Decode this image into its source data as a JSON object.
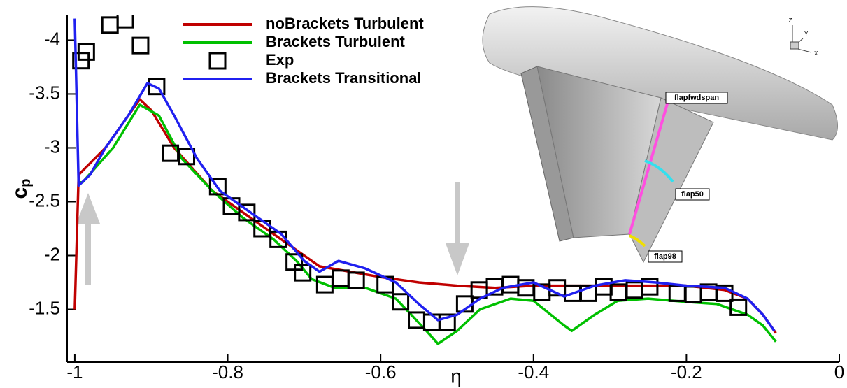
{
  "chart_data": {
    "type": "line",
    "xlabel": "η",
    "ylabel": "c",
    "ylabel_subscript": "p",
    "xlim": [
      -1.01,
      0
    ],
    "ylim": [
      -1.01,
      -4.23
    ],
    "xticks": [
      -1,
      -0.8,
      -0.6,
      -0.4,
      -0.2,
      0
    ],
    "yticks": [
      -4,
      -3.5,
      -3,
      -2.5,
      -2,
      -1.5
    ],
    "series": [
      {
        "name": "noBrackets Turbulent",
        "color": "#c00000",
        "style": "line",
        "x": [
          -1.0,
          -0.995,
          -0.96,
          -0.94,
          -0.915,
          -0.9,
          -0.87,
          -0.82,
          -0.78,
          -0.74,
          -0.71,
          -0.68,
          -0.64,
          -0.6,
          -0.55,
          -0.5,
          -0.45,
          -0.4,
          -0.3,
          -0.2,
          -0.15,
          -0.12,
          -0.1,
          -0.083
        ],
        "values": [
          -1.5,
          -2.75,
          -3.0,
          -3.2,
          -3.45,
          -3.35,
          -3.0,
          -2.6,
          -2.4,
          -2.2,
          -2.05,
          -1.9,
          -1.85,
          -1.8,
          -1.75,
          -1.72,
          -1.7,
          -1.72,
          -1.72,
          -1.72,
          -1.68,
          -1.6,
          -1.45,
          -1.28
        ]
      },
      {
        "name": "Brackets Turbulent",
        "color": "#00c000",
        "style": "line",
        "x": [
          -0.995,
          -0.99,
          -0.95,
          -0.915,
          -0.89,
          -0.86,
          -0.82,
          -0.78,
          -0.74,
          -0.71,
          -0.69,
          -0.66,
          -0.62,
          -0.58,
          -0.54,
          -0.525,
          -0.5,
          -0.47,
          -0.43,
          -0.4,
          -0.36,
          -0.35,
          -0.32,
          -0.29,
          -0.25,
          -0.2,
          -0.16,
          -0.12,
          -0.1,
          -0.083
        ],
        "values": [
          -2.68,
          -2.68,
          -3.0,
          -3.4,
          -3.3,
          -2.9,
          -2.6,
          -2.35,
          -2.15,
          -1.95,
          -1.78,
          -1.7,
          -1.7,
          -1.6,
          -1.3,
          -1.18,
          -1.3,
          -1.5,
          -1.6,
          -1.58,
          -1.35,
          -1.3,
          -1.45,
          -1.58,
          -1.6,
          -1.57,
          -1.55,
          -1.45,
          -1.35,
          -1.2
        ]
      },
      {
        "name": "Exp",
        "color": "#000000",
        "style": "marker",
        "x": [
          -0.992,
          -0.985,
          -0.954,
          -0.934,
          -0.914,
          -0.893,
          -0.875,
          -0.854,
          -0.813,
          -0.795,
          -0.775,
          -0.755,
          -0.734,
          -0.713,
          -0.702,
          -0.673,
          -0.652,
          -0.632,
          -0.594,
          -0.574,
          -0.553,
          -0.533,
          -0.513,
          -0.49,
          -0.471,
          -0.451,
          -0.43,
          -0.41,
          -0.389,
          -0.369,
          -0.349,
          -0.328,
          -0.308,
          -0.289,
          -0.268,
          -0.248,
          -0.212,
          -0.191,
          -0.171,
          -0.15,
          -0.132
        ],
        "values": [
          -3.81,
          -3.89,
          -4.14,
          -4.19,
          -3.95,
          -3.57,
          -2.95,
          -2.92,
          -2.64,
          -2.46,
          -2.4,
          -2.25,
          -2.15,
          -1.94,
          -1.84,
          -1.73,
          -1.79,
          -1.77,
          -1.73,
          -1.57,
          -1.4,
          -1.38,
          -1.38,
          -1.55,
          -1.68,
          -1.71,
          -1.73,
          -1.7,
          -1.66,
          -1.7,
          -1.65,
          -1.65,
          -1.71,
          -1.66,
          -1.68,
          -1.71,
          -1.65,
          -1.64,
          -1.66,
          -1.65,
          -1.52
        ]
      },
      {
        "name": "Brackets Transitional",
        "color": "#2020f0",
        "style": "line",
        "x": [
          -1.0,
          -0.995,
          -0.98,
          -0.96,
          -0.93,
          -0.905,
          -0.89,
          -0.87,
          -0.84,
          -0.81,
          -0.77,
          -0.73,
          -0.7,
          -0.68,
          -0.655,
          -0.62,
          -0.58,
          -0.55,
          -0.525,
          -0.5,
          -0.47,
          -0.44,
          -0.4,
          -0.36,
          -0.32,
          -0.28,
          -0.24,
          -0.2,
          -0.15,
          -0.12,
          -0.1,
          -0.085
        ],
        "values": [
          -4.2,
          -2.65,
          -2.75,
          -3.0,
          -3.3,
          -3.6,
          -3.55,
          -3.3,
          -2.9,
          -2.6,
          -2.4,
          -2.2,
          -1.95,
          -1.85,
          -1.95,
          -1.88,
          -1.75,
          -1.55,
          -1.4,
          -1.45,
          -1.6,
          -1.7,
          -1.75,
          -1.62,
          -1.72,
          -1.77,
          -1.75,
          -1.72,
          -1.7,
          -1.6,
          -1.45,
          -1.3
        ]
      }
    ]
  },
  "inset": {
    "labels": [
      "flapfwdspan",
      "flap50",
      "flap98"
    ],
    "axes": [
      "Z",
      "Y",
      "X"
    ]
  }
}
